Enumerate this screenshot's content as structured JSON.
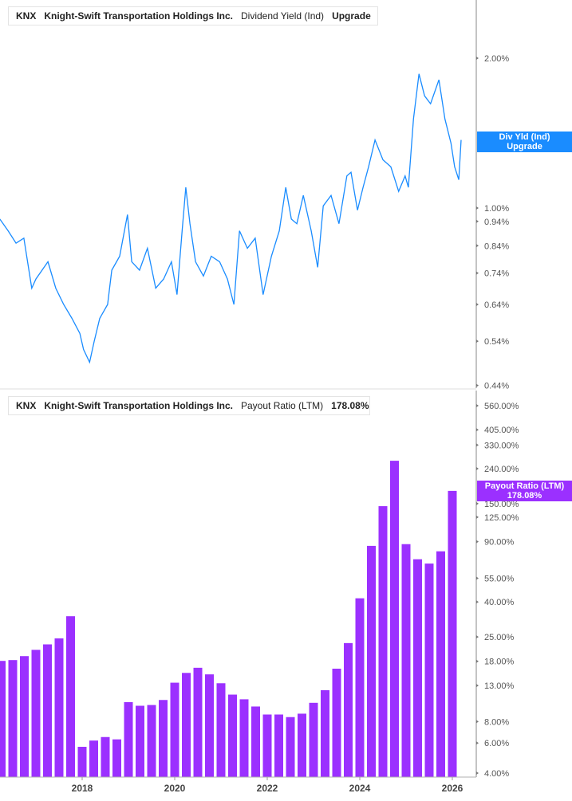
{
  "colors": {
    "yield": "#1a8cff",
    "payout": "#9b30ff",
    "axis": "#b0b0b0"
  },
  "top_legend": {
    "ticker": "KNX",
    "company": "Knight-Swift Transportation Holdings Inc.",
    "metric": "Dividend Yield (Ind)",
    "value": "Upgrade"
  },
  "top_tag": {
    "line1": "Div Yld (Ind)",
    "line2": "Upgrade"
  },
  "bottom_legend": {
    "ticker": "KNX",
    "company": "Knight-Swift Transportation Holdings Inc.",
    "metric": "Payout Ratio (LTM)",
    "value": "178.08%"
  },
  "bottom_tag": {
    "line1": "Payout Ratio (LTM)",
    "line2": "178.08%"
  },
  "chart_data": [
    {
      "type": "line",
      "scale": "log",
      "ylim": [
        0.44,
        2.3
      ],
      "yticks": [
        {
          "v": 2.0,
          "label": "2.00%"
        },
        {
          "v": 1.0,
          "label": "1.00%"
        },
        {
          "v": 0.94,
          "label": "0.94%"
        },
        {
          "v": 0.84,
          "label": "0.84%"
        },
        {
          "v": 0.74,
          "label": "0.74%"
        },
        {
          "v": 0.64,
          "label": "0.64%"
        },
        {
          "v": 0.54,
          "label": "0.54%"
        },
        {
          "v": 0.44,
          "label": "0.44%"
        }
      ],
      "x": [
        2016.22,
        2016.4,
        2016.57,
        2016.74,
        2016.91,
        2017.0,
        2017.26,
        2017.43,
        2017.6,
        2017.78,
        2017.95,
        2018.03,
        2018.16,
        2018.26,
        2018.38,
        2018.55,
        2018.64,
        2018.81,
        2018.98,
        2019.07,
        2019.24,
        2019.41,
        2019.59,
        2019.76,
        2019.93,
        2020.05,
        2020.16,
        2020.24,
        2020.33,
        2020.45,
        2020.62,
        2020.79,
        2020.97,
        2021.14,
        2021.28,
        2021.4,
        2021.57,
        2021.74,
        2021.91,
        2022.09,
        2022.26,
        2022.4,
        2022.52,
        2022.64,
        2022.78,
        2022.95,
        2023.09,
        2023.21,
        2023.38,
        2023.55,
        2023.72,
        2023.81,
        2023.95,
        2024.07,
        2024.19,
        2024.33,
        2024.5,
        2024.67,
        2024.84,
        2024.98,
        2025.05,
        2025.16,
        2025.28,
        2025.4,
        2025.53,
        2025.71,
        2025.84,
        2025.97,
        2026.05,
        2026.14,
        2026.19
      ],
      "y": [
        0.95,
        0.9,
        0.85,
        0.87,
        0.69,
        0.72,
        0.78,
        0.69,
        0.64,
        0.6,
        0.56,
        0.52,
        0.49,
        0.54,
        0.6,
        0.64,
        0.75,
        0.8,
        0.97,
        0.78,
        0.75,
        0.83,
        0.69,
        0.72,
        0.78,
        0.67,
        0.9,
        1.1,
        0.93,
        0.78,
        0.73,
        0.8,
        0.78,
        0.72,
        0.64,
        0.9,
        0.83,
        0.87,
        0.67,
        0.8,
        0.9,
        1.1,
        0.95,
        0.93,
        1.06,
        0.9,
        0.76,
        1.01,
        1.06,
        0.93,
        1.16,
        1.18,
        0.99,
        1.1,
        1.21,
        1.37,
        1.25,
        1.21,
        1.08,
        1.16,
        1.1,
        1.51,
        1.86,
        1.68,
        1.62,
        1.81,
        1.51,
        1.35,
        1.21,
        1.14,
        1.37
      ]
    },
    {
      "type": "bar",
      "scale": "log",
      "ylim": [
        3.6,
        620
      ],
      "yticks": [
        {
          "v": 560,
          "label": "560.00%"
        },
        {
          "v": 405,
          "label": "405.00%"
        },
        {
          "v": 330,
          "label": "330.00%"
        },
        {
          "v": 240,
          "label": "240.00%"
        },
        {
          "v": 150,
          "label": "150.00%"
        },
        {
          "v": 125,
          "label": "125.00%"
        },
        {
          "v": 90,
          "label": "90.00%"
        },
        {
          "v": 55,
          "label": "55.00%"
        },
        {
          "v": 40,
          "label": "40.00%"
        },
        {
          "v": 25,
          "label": "25.00%"
        },
        {
          "v": 18,
          "label": "18.00%"
        },
        {
          "v": 13,
          "label": "13.00%"
        },
        {
          "v": 8,
          "label": "8.00%"
        },
        {
          "v": 6,
          "label": "6.00%"
        },
        {
          "v": 4,
          "label": "4.00%"
        }
      ],
      "xticks": [
        "2018",
        "2020",
        "2022",
        "2024",
        "2026"
      ],
      "x": [
        2016.25,
        2016.5,
        2016.75,
        2017.0,
        2017.25,
        2017.5,
        2017.75,
        2018.0,
        2018.25,
        2018.5,
        2018.75,
        2019.0,
        2019.25,
        2019.5,
        2019.75,
        2020.0,
        2020.25,
        2020.5,
        2020.75,
        2021.0,
        2021.25,
        2021.5,
        2021.75,
        2022.0,
        2022.25,
        2022.5,
        2022.75,
        2023.0,
        2023.25,
        2023.5,
        2023.75,
        2024.0,
        2024.25,
        2024.5,
        2024.75,
        2025.0,
        2025.25,
        2025.5,
        2025.75,
        2026.0
      ],
      "values": [
        18.1,
        18.3,
        19.3,
        21,
        22.6,
        24.5,
        33,
        5.7,
        6.2,
        6.5,
        6.3,
        10.4,
        9.9,
        10.0,
        10.7,
        13.5,
        15.4,
        16.5,
        15.1,
        13.4,
        11.5,
        10.8,
        9.8,
        8.8,
        8.8,
        8.5,
        8.9,
        10.3,
        12.2,
        16.3,
        23,
        42,
        85,
        145,
        267,
        87,
        71,
        67,
        79,
        178.08
      ]
    }
  ]
}
